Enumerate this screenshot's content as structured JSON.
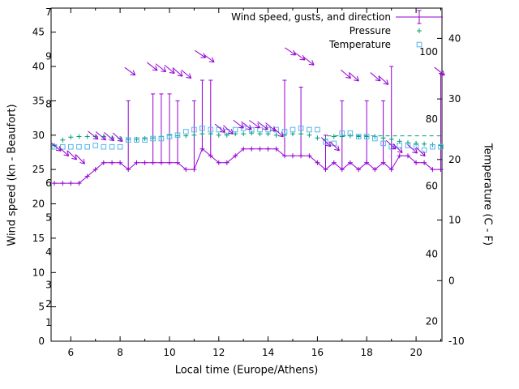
{
  "colors": {
    "wind": "#9400d3",
    "pressure": "#009e73",
    "temperature": "#56b4e9",
    "axis": "#000000",
    "background": "#ffffff"
  },
  "chart_data": {
    "type": "line",
    "title": "",
    "xlabel": "Local time (Europe/Athens)",
    "ylabel": "Wind speed (kn - Beaufort)",
    "y2label": "Temperature (C - F)",
    "xlim": [
      5.2,
      21.05
    ],
    "ylim": [
      0,
      48.5
    ],
    "y2lim": [
      -10,
      45
    ],
    "xticks": [
      6,
      8,
      10,
      12,
      14,
      16,
      18,
      20
    ],
    "xminor": [
      7,
      9,
      11,
      13,
      15,
      17,
      19,
      21
    ],
    "yticks": [
      0,
      5,
      10,
      15,
      20,
      25,
      30,
      35,
      40,
      45
    ],
    "y2ticks": [
      -10,
      0,
      10,
      20,
      30,
      40
    ],
    "beaufort_labels": [
      {
        "label": "7",
        "kn": 47.9
      },
      {
        "label": "9",
        "kn": 41.5
      },
      {
        "label": "8",
        "kn": 34.5
      },
      {
        "label": "6",
        "kn": 23
      },
      {
        "label": "5",
        "kn": 18
      },
      {
        "label": "4",
        "kn": 13
      },
      {
        "label": "3",
        "kn": 8.2
      },
      {
        "label": "2",
        "kn": 5.4
      },
      {
        "label": "1",
        "kn": 2.7
      }
    ],
    "fahrenheit_labels": [
      {
        "label": "100",
        "c": 37.8
      },
      {
        "label": "80",
        "c": 26.7
      },
      {
        "label": "60",
        "c": 15.6
      },
      {
        "label": "40",
        "c": 4.4
      },
      {
        "label": "20",
        "c": -6.7
      }
    ],
    "x": [
      5.33,
      5.67,
      6,
      6.33,
      6.67,
      7,
      7.33,
      7.67,
      8,
      8.33,
      8.67,
      9,
      9.33,
      9.67,
      10,
      10.33,
      10.67,
      11,
      11.33,
      11.67,
      12,
      12.33,
      12.67,
      13,
      13.33,
      13.67,
      14,
      14.33,
      14.67,
      15,
      15.33,
      15.67,
      16,
      16.33,
      16.67,
      17,
      17.33,
      17.67,
      18,
      18.33,
      18.67,
      19,
      19.33,
      19.67,
      20,
      20.33,
      20.67,
      21
    ],
    "series": [
      {
        "name": "Wind speed, gusts, and direction",
        "type": "yerrorlines",
        "marker": "plus",
        "color_key": "wind",
        "values": [
          23,
          23,
          23,
          23,
          24,
          25,
          26,
          26,
          26,
          25,
          26,
          26,
          26,
          26,
          26,
          26,
          25,
          25,
          28,
          27,
          26,
          26,
          27,
          28,
          28,
          28,
          28,
          28,
          27,
          27,
          27,
          27,
          26,
          25,
          26,
          25,
          26,
          25,
          26,
          25,
          26,
          25,
          27,
          27,
          26,
          26,
          25,
          25
        ],
        "gusts": [
          null,
          null,
          null,
          null,
          null,
          null,
          null,
          null,
          null,
          35,
          null,
          null,
          36,
          36,
          36,
          35,
          null,
          35,
          38,
          38,
          null,
          null,
          null,
          null,
          null,
          null,
          null,
          null,
          38,
          null,
          37,
          null,
          null,
          30,
          null,
          35,
          null,
          null,
          35,
          null,
          35,
          40,
          null,
          null,
          null,
          null,
          null,
          39
        ]
      },
      {
        "name": "Pressure",
        "type": "points",
        "marker": "plus",
        "color_key": "pressure",
        "values": [
          28.5,
          29.3,
          29.7,
          29.8,
          29.8,
          29.8,
          29.8,
          29.6,
          29.5,
          29.4,
          29.4,
          29.5,
          29.6,
          29.8,
          30,
          29.9,
          29.9,
          30,
          30.2,
          30.2,
          30,
          30,
          30.2,
          30.2,
          30.3,
          30.2,
          30.2,
          30,
          30,
          30.2,
          30.2,
          30,
          29.6,
          29.4,
          29.8,
          29.8,
          29.9,
          29.8,
          29.8,
          29.8,
          29.6,
          29.4,
          29.1,
          28.9,
          28.8,
          28.7,
          28.6,
          28.5
        ]
      },
      {
        "name": "Temperature",
        "type": "points",
        "marker": "square",
        "color_key": "temperature",
        "values": [
          28.3,
          28.3,
          28.3,
          28.3,
          28.3,
          28.5,
          28.3,
          28.3,
          28.3,
          29.3,
          29.3,
          29.3,
          29.5,
          29.5,
          29.8,
          30,
          30.5,
          30.8,
          31,
          30.8,
          30.8,
          30.5,
          30.8,
          31,
          30.8,
          30.8,
          30.8,
          30.8,
          30.5,
          30.8,
          31,
          30.8,
          30.8,
          29,
          28.8,
          30.3,
          30.3,
          29.8,
          29.8,
          29.5,
          28.8,
          28.3,
          28.5,
          28.5,
          28.3,
          27.8,
          28.3,
          28.3
        ]
      }
    ],
    "pressure_dash": {
      "x1": 16.4,
      "x2": 21.0,
      "value": 29.9
    },
    "wind_arrows": [
      [
        5.4,
        28.3,
        40
      ],
      [
        5.72,
        27.6,
        42
      ],
      [
        6.05,
        27.1,
        44
      ],
      [
        6.38,
        26.5,
        46
      ],
      [
        6.9,
        30,
        38
      ],
      [
        7.22,
        29.9,
        40
      ],
      [
        7.55,
        29.8,
        40
      ],
      [
        7.9,
        29.7,
        42
      ],
      [
        8.4,
        39.3,
        36
      ],
      [
        9.3,
        40,
        38
      ],
      [
        9.65,
        39.8,
        38
      ],
      [
        10,
        39.6,
        40
      ],
      [
        10.33,
        39.2,
        42
      ],
      [
        10.68,
        38.9,
        40
      ],
      [
        11.25,
        41.8,
        34
      ],
      [
        11.6,
        41.2,
        36
      ],
      [
        12.05,
        31,
        40
      ],
      [
        12.38,
        30.8,
        42
      ],
      [
        12.8,
        31.6,
        38
      ],
      [
        13.12,
        31.4,
        38
      ],
      [
        13.45,
        31.6,
        36
      ],
      [
        13.78,
        31.4,
        38
      ],
      [
        14.1,
        31.2,
        40
      ],
      [
        14.42,
        30.4,
        42
      ],
      [
        14.9,
        42.2,
        34
      ],
      [
        15.28,
        41.5,
        36
      ],
      [
        15.65,
        40.8,
        38
      ],
      [
        16.35,
        29,
        44
      ],
      [
        16.7,
        28.4,
        44
      ],
      [
        17.15,
        38.9,
        40
      ],
      [
        17.48,
        38.5,
        42
      ],
      [
        18.35,
        38.5,
        40
      ],
      [
        18.68,
        38,
        42
      ],
      [
        18.98,
        28.6,
        42
      ],
      [
        19.25,
        28.1,
        44
      ],
      [
        19.85,
        28,
        42
      ],
      [
        20.18,
        27.6,
        44
      ],
      [
        20.95,
        39.3,
        38
      ]
    ]
  }
}
